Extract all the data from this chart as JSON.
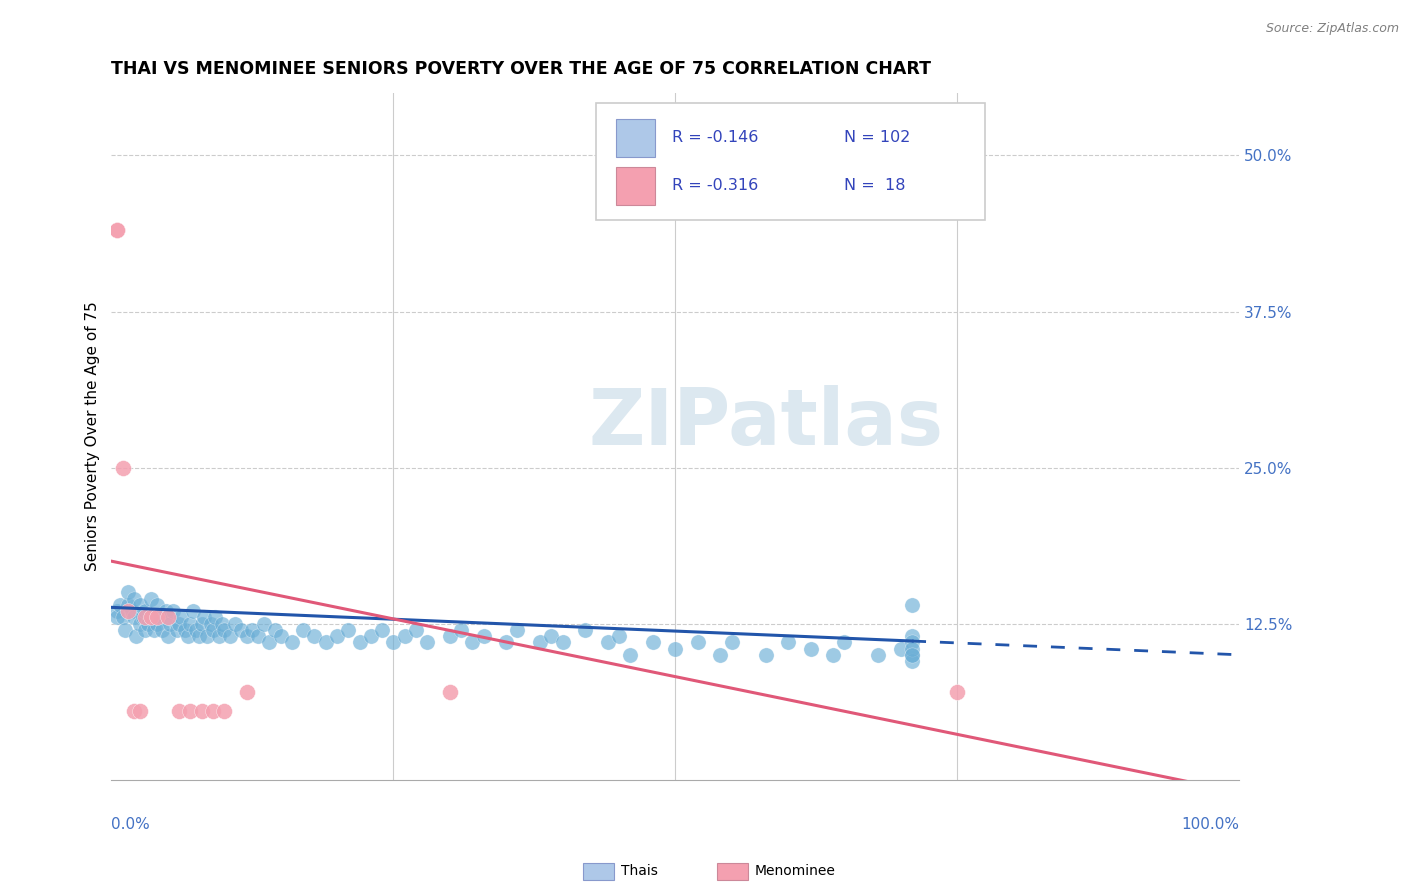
{
  "title": "THAI VS MENOMINEE SENIORS POVERTY OVER THE AGE OF 75 CORRELATION CHART",
  "source": "Source: ZipAtlas.com",
  "ylabel": "Seniors Poverty Over the Age of 75",
  "thai_color": "#6baed6",
  "thai_color_light": "#aec8e8",
  "menominee_color": "#f4a0b0",
  "menominee_line_color": "#e05878",
  "thai_line_color": "#2255aa",
  "background_color": "#ffffff",
  "grid_color": "#cccccc",
  "axis_label_color": "#4472c4",
  "thai_x": [
    0.005,
    0.005,
    0.008,
    0.01,
    0.012,
    0.015,
    0.015,
    0.018,
    0.02,
    0.02,
    0.022,
    0.025,
    0.025,
    0.028,
    0.03,
    0.03,
    0.032,
    0.035,
    0.035,
    0.038,
    0.04,
    0.04,
    0.042,
    0.045,
    0.048,
    0.05,
    0.05,
    0.052,
    0.055,
    0.058,
    0.06,
    0.062,
    0.065,
    0.068,
    0.07,
    0.072,
    0.075,
    0.078,
    0.08,
    0.082,
    0.085,
    0.088,
    0.09,
    0.092,
    0.095,
    0.098,
    0.1,
    0.105,
    0.11,
    0.115,
    0.12,
    0.125,
    0.13,
    0.135,
    0.14,
    0.145,
    0.15,
    0.16,
    0.17,
    0.18,
    0.19,
    0.2,
    0.21,
    0.22,
    0.23,
    0.24,
    0.25,
    0.26,
    0.27,
    0.28,
    0.3,
    0.31,
    0.32,
    0.33,
    0.35,
    0.36,
    0.38,
    0.39,
    0.4,
    0.42,
    0.44,
    0.45,
    0.46,
    0.48,
    0.5,
    0.52,
    0.54,
    0.55,
    0.58,
    0.6,
    0.62,
    0.64,
    0.65,
    0.68,
    0.7,
    0.71,
    0.71,
    0.71,
    0.71,
    0.71,
    0.71,
    0.71
  ],
  "thai_y": [
    0.135,
    0.13,
    0.14,
    0.13,
    0.12,
    0.14,
    0.15,
    0.135,
    0.13,
    0.145,
    0.115,
    0.125,
    0.14,
    0.13,
    0.12,
    0.135,
    0.125,
    0.145,
    0.13,
    0.12,
    0.125,
    0.14,
    0.13,
    0.12,
    0.135,
    0.13,
    0.115,
    0.125,
    0.135,
    0.12,
    0.125,
    0.13,
    0.12,
    0.115,
    0.125,
    0.135,
    0.12,
    0.115,
    0.125,
    0.13,
    0.115,
    0.125,
    0.12,
    0.13,
    0.115,
    0.125,
    0.12,
    0.115,
    0.125,
    0.12,
    0.115,
    0.12,
    0.115,
    0.125,
    0.11,
    0.12,
    0.115,
    0.11,
    0.12,
    0.115,
    0.11,
    0.115,
    0.12,
    0.11,
    0.115,
    0.12,
    0.11,
    0.115,
    0.12,
    0.11,
    0.115,
    0.12,
    0.11,
    0.115,
    0.11,
    0.12,
    0.11,
    0.115,
    0.11,
    0.12,
    0.11,
    0.115,
    0.1,
    0.11,
    0.105,
    0.11,
    0.1,
    0.11,
    0.1,
    0.11,
    0.105,
    0.1,
    0.11,
    0.1,
    0.105,
    0.14,
    0.115,
    0.1,
    0.095,
    0.11,
    0.105,
    0.1
  ],
  "men_x": [
    0.005,
    0.005,
    0.01,
    0.015,
    0.02,
    0.025,
    0.03,
    0.035,
    0.04,
    0.05,
    0.06,
    0.07,
    0.08,
    0.09,
    0.1,
    0.12,
    0.3,
    0.75
  ],
  "men_y": [
    0.44,
    0.44,
    0.25,
    0.135,
    0.055,
    0.055,
    0.13,
    0.13,
    0.13,
    0.13,
    0.055,
    0.055,
    0.055,
    0.055,
    0.055,
    0.07,
    0.07,
    0.07
  ],
  "thai_trend_x0": 0.0,
  "thai_trend_x_solid_end": 0.71,
  "thai_trend_x_dash_end": 1.0,
  "thai_trend_y_start": 0.138,
  "thai_trend_slope": -0.038,
  "men_trend_x0": 0.0,
  "men_trend_x_end": 1.0,
  "men_trend_y_start": 0.175,
  "men_trend_slope": -0.185,
  "xlim": [
    0.0,
    1.0
  ],
  "ylim": [
    0.0,
    0.55
  ],
  "yticks": [
    0.0,
    0.125,
    0.25,
    0.375,
    0.5
  ],
  "ytick_labels": [
    "",
    "12.5%",
    "25.0%",
    "37.5%",
    "50.0%"
  ],
  "hgrid_vals": [
    0.125,
    0.25,
    0.375,
    0.5
  ],
  "vgrid_vals": [
    0.25,
    0.5,
    0.75
  ],
  "legend_r1": "R = -0.146",
  "legend_n1": "N = 102",
  "legend_r2": "R = -0.316",
  "legend_n2": "N =  18",
  "watermark_text": "ZIPatlas",
  "bottom_label1": "Thais",
  "bottom_label2": "Menominee"
}
